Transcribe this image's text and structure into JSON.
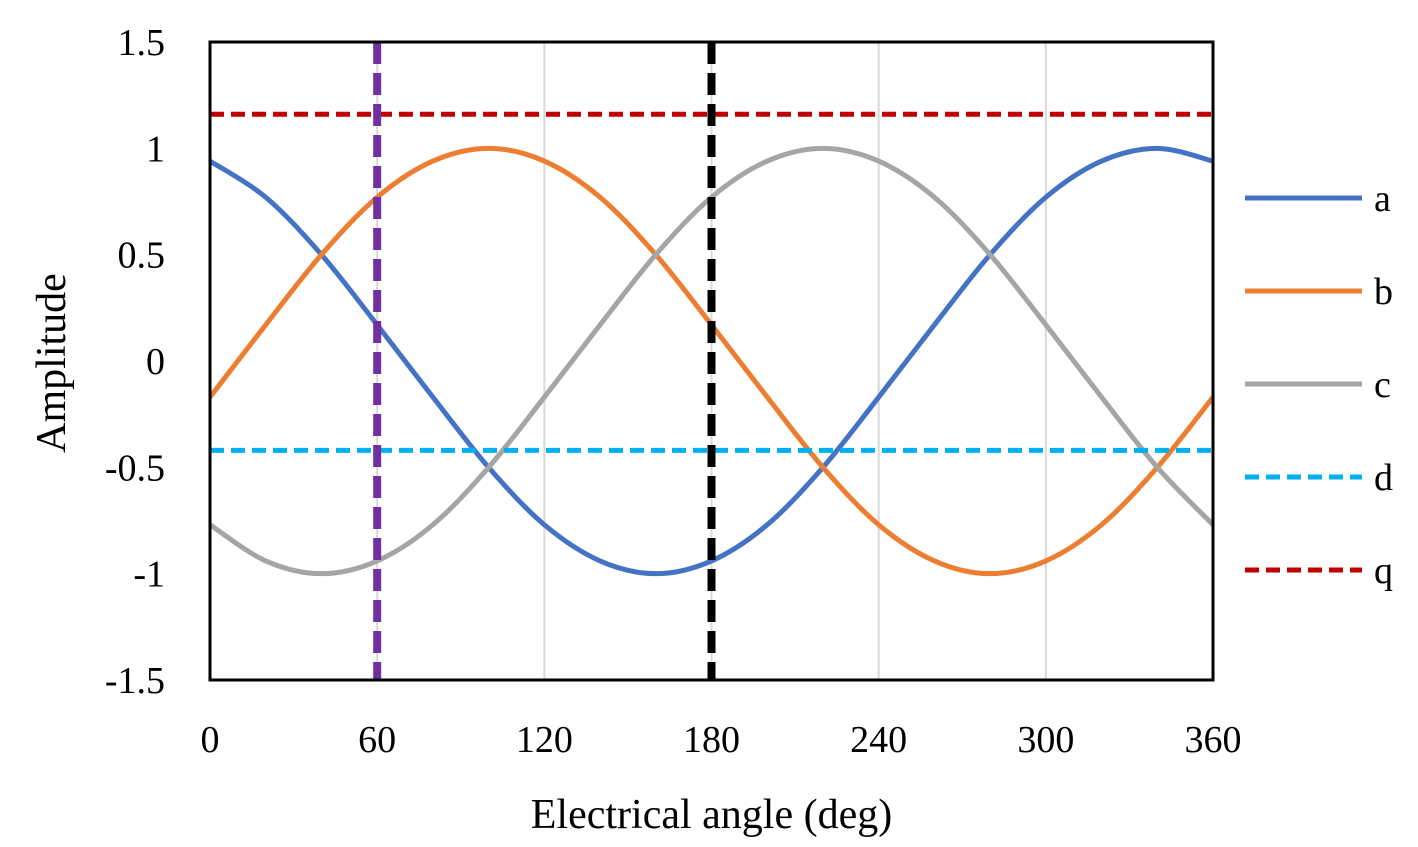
{
  "chart_data": {
    "type": "line",
    "title": "",
    "xlabel": "Electrical angle (deg)",
    "ylabel": "Amplitude",
    "xlim": [
      0,
      360
    ],
    "ylim": [
      -1.5,
      1.5
    ],
    "x_ticks": [
      0,
      60,
      120,
      180,
      240,
      300,
      360
    ],
    "x_tick_labels": [
      "0",
      "60",
      "120",
      "180",
      "240",
      "300",
      "360"
    ],
    "y_ticks": [
      1.5,
      1,
      0.5,
      0,
      -0.5,
      -1,
      -1.5
    ],
    "y_tick_labels": [
      "1.5",
      "1",
      "0.5",
      "0",
      "-0.5",
      "-1",
      "-1.5"
    ],
    "grid": "vertical",
    "legend_position": "right",
    "series": [
      {
        "name": "a",
        "color": "#4472C4",
        "style": "solid",
        "x": [
          0,
          20,
          40,
          60,
          80,
          100,
          120,
          140,
          160,
          180,
          200,
          220,
          240,
          260,
          280,
          300,
          320,
          340,
          360
        ],
        "y": [
          0.94,
          0.77,
          0.5,
          0.17,
          -0.17,
          -0.5,
          -0.77,
          -0.94,
          -1.0,
          -0.94,
          -0.77,
          -0.5,
          -0.17,
          0.17,
          0.5,
          0.77,
          0.94,
          1.0,
          0.94
        ]
      },
      {
        "name": "b",
        "color": "#ED7D31",
        "style": "solid",
        "x": [
          0,
          20,
          40,
          60,
          80,
          100,
          120,
          140,
          160,
          180,
          200,
          220,
          240,
          260,
          280,
          300,
          320,
          340,
          360
        ],
        "y": [
          -0.17,
          0.17,
          0.5,
          0.77,
          0.94,
          1.0,
          0.94,
          0.77,
          0.5,
          0.17,
          -0.17,
          -0.5,
          -0.77,
          -0.94,
          -1.0,
          -0.94,
          -0.77,
          -0.5,
          -0.17
        ]
      },
      {
        "name": "c",
        "color": "#A5A5A5",
        "style": "solid",
        "x": [
          0,
          20,
          40,
          60,
          80,
          100,
          120,
          140,
          160,
          180,
          200,
          220,
          240,
          260,
          280,
          300,
          320,
          340,
          360
        ],
        "y": [
          -0.77,
          -0.94,
          -1.0,
          -0.94,
          -0.77,
          -0.5,
          -0.17,
          0.17,
          0.5,
          0.77,
          0.94,
          1.0,
          0.94,
          0.77,
          0.5,
          0.17,
          -0.17,
          -0.5,
          -0.77
        ]
      },
      {
        "name": "d",
        "color": "#00B0F0",
        "style": "dashed",
        "x": [
          0,
          360
        ],
        "y": [
          -0.42,
          -0.42
        ]
      },
      {
        "name": "q",
        "color": "#C00000",
        "style": "dashed",
        "x": [
          0,
          360
        ],
        "y": [
          1.16,
          1.16
        ]
      }
    ],
    "reference_lines": [
      {
        "x": 60,
        "color": "#7030A0",
        "style": "dashed"
      },
      {
        "x": 180,
        "color": "#000000",
        "style": "dashed"
      }
    ]
  }
}
